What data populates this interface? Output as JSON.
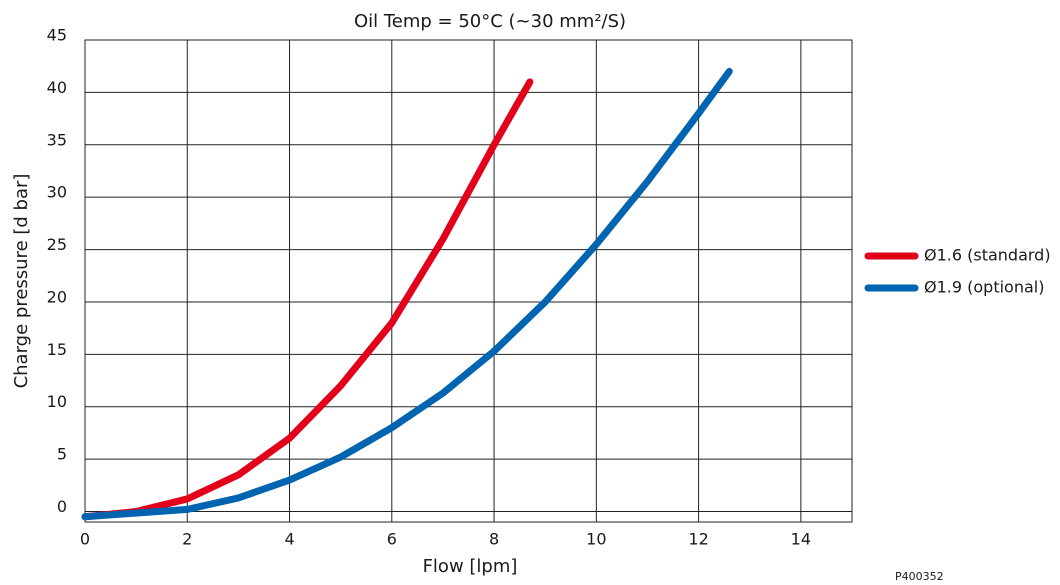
{
  "chart_data": {
    "type": "line",
    "title": "Oil Temp = 50°C (~30 mm²/S)",
    "x_label": "Flow [lpm]",
    "y_label": "Charge pressure  [d bar]",
    "note": "P400352",
    "xlim": [
      0,
      15
    ],
    "xticks": [
      0,
      2,
      4,
      6,
      8,
      10,
      12,
      14
    ],
    "ylim": [
      -1,
      45
    ],
    "yticks": [
      0,
      5,
      10,
      15,
      20,
      25,
      30,
      35,
      40,
      45
    ],
    "grid": true,
    "legend": "right",
    "series": [
      {
        "name": "Ø1.6 (standard)",
        "color": "#e3001b",
        "x": [
          0,
          1,
          2,
          3,
          4,
          5,
          6,
          7,
          8,
          8.7
        ],
        "values": [
          -0.5,
          0,
          1.2,
          3.5,
          7,
          12,
          18,
          26,
          35,
          41
        ]
      },
      {
        "name": "Ø1.9 (optional)",
        "color": "#0064b0",
        "x": [
          0,
          2,
          3,
          4,
          5,
          6,
          7,
          8,
          9,
          10,
          11,
          12,
          12.6
        ],
        "values": [
          -0.5,
          0.2,
          1.3,
          3,
          5.2,
          8,
          11.3,
          15.3,
          20,
          25.5,
          31.5,
          38,
          42
        ]
      }
    ]
  }
}
